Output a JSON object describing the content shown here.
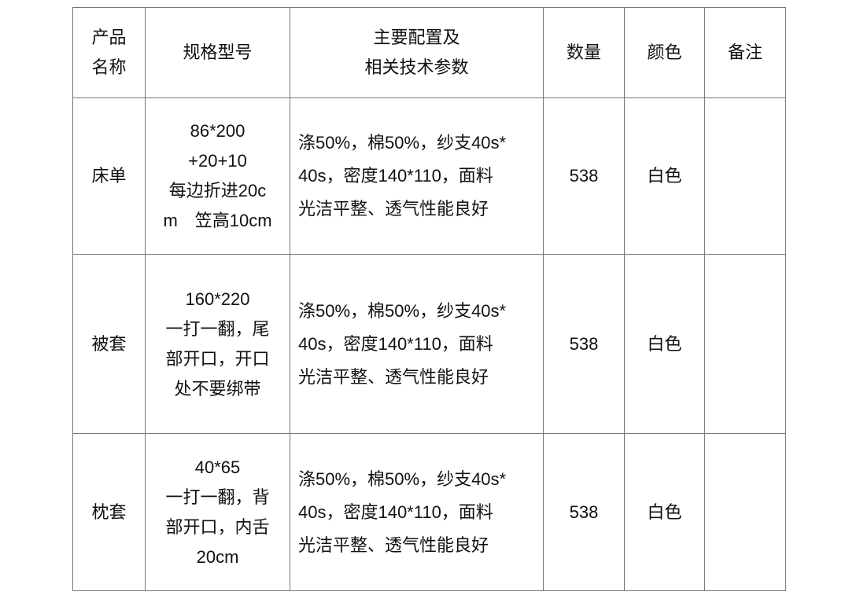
{
  "headers": [
    {
      "lines": [
        "产品",
        "名称"
      ]
    },
    {
      "lines": [
        "规格型号"
      ]
    },
    {
      "lines": [
        "主要配置及",
        "相关技术参数"
      ]
    },
    {
      "lines": [
        "数量"
      ]
    },
    {
      "lines": [
        "颜色"
      ]
    },
    {
      "lines": [
        "备注"
      ]
    }
  ],
  "rows": [
    {
      "name": "床单",
      "spec": [
        "86*200",
        "+20+10",
        "每边折进20c",
        "m　笠高10cm"
      ],
      "config": [
        "涤50%，棉50%，纱支40s*",
        "40s，密度140*110，面料",
        "光洁平整、透气性能良好"
      ],
      "quantity": "538",
      "color": "白色",
      "remark": ""
    },
    {
      "name": "被套",
      "spec": [
        "160*220",
        "一打一翻，尾",
        "部开口，开口",
        "处不要绑带"
      ],
      "config": [
        "涤50%，棉50%，纱支40s*",
        "40s，密度140*110，面料",
        "光洁平整、透气性能良好"
      ],
      "quantity": "538",
      "color": "白色",
      "remark": ""
    },
    {
      "name": "枕套",
      "spec": [
        "40*65",
        "一打一翻，背",
        "部开口，内舌",
        "20cm"
      ],
      "config": [
        "涤50%，棉50%，纱支40s*",
        "40s，密度140*110，面料",
        "光洁平整、透气性能良好"
      ],
      "quantity": "538",
      "color": "白色",
      "remark": ""
    }
  ]
}
